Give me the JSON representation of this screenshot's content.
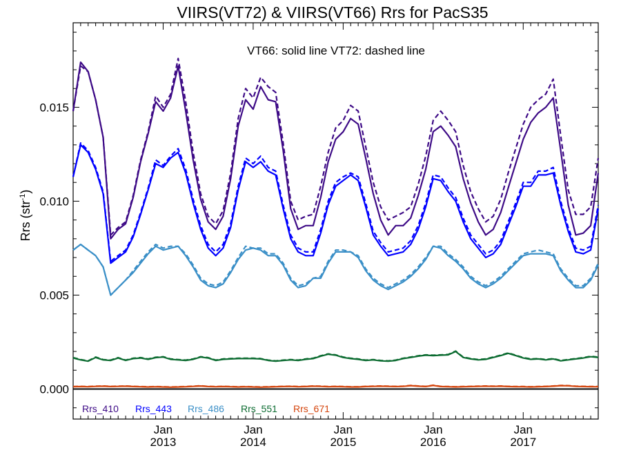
{
  "chart_data": {
    "type": "line",
    "title": "VIIRS(VT72) & VIIRS(VT66)  Rrs for PacS35",
    "annotation": "VT66: solid line   VT72: dashed line",
    "ylabel": "Rrs (str",
    "ylabel_sup": "-1",
    "ylabel_close": ")",
    "ylim": [
      -0.0016,
      0.0195
    ],
    "xlim": [
      "2012-01",
      "2017-11"
    ],
    "y_ticks": [
      "0.000",
      "0.005",
      "0.010",
      "0.015"
    ],
    "x_ticks": [
      {
        "month": "Jan",
        "year": "2013",
        "date": "2013-01"
      },
      {
        "month": "Jan",
        "year": "2014",
        "date": "2014-01"
      },
      {
        "month": "Jan",
        "year": "2015",
        "date": "2015-01"
      },
      {
        "month": "Jan",
        "year": "2016",
        "date": "2016-01"
      },
      {
        "month": "Jan",
        "year": "2017",
        "date": "2017-01"
      }
    ],
    "zero_line": 0.0,
    "grid": false,
    "legend_position": "bottom-left",
    "x": [
      "2012-01",
      "2012-02",
      "2012-03",
      "2012-04",
      "2012-05",
      "2012-06",
      "2012-07",
      "2012-08",
      "2012-09",
      "2012-10",
      "2012-11",
      "2012-12",
      "2013-01",
      "2013-02",
      "2013-03",
      "2013-04",
      "2013-05",
      "2013-06",
      "2013-07",
      "2013-08",
      "2013-09",
      "2013-10",
      "2013-11",
      "2013-12",
      "2014-01",
      "2014-02",
      "2014-03",
      "2014-04",
      "2014-05",
      "2014-06",
      "2014-07",
      "2014-08",
      "2014-09",
      "2014-10",
      "2014-11",
      "2014-12",
      "2015-01",
      "2015-02",
      "2015-03",
      "2015-04",
      "2015-05",
      "2015-06",
      "2015-07",
      "2015-08",
      "2015-09",
      "2015-10",
      "2015-11",
      "2015-12",
      "2016-01",
      "2016-02",
      "2016-03",
      "2016-04",
      "2016-05",
      "2016-06",
      "2016-07",
      "2016-08",
      "2016-09",
      "2016-10",
      "2016-11",
      "2016-12",
      "2017-01",
      "2017-02",
      "2017-03",
      "2017-04",
      "2017-05",
      "2017-06",
      "2017-07",
      "2017-08",
      "2017-09",
      "2017-10",
      "2017-11"
    ],
    "series": [
      {
        "name": "Rrs_410",
        "color": "#3d0a86",
        "vt66": [
          0.0148,
          0.0174,
          0.0169,
          0.0154,
          0.0134,
          0.008,
          0.0085,
          0.0088,
          0.0102,
          0.0121,
          0.0136,
          0.0153,
          0.0148,
          0.0155,
          0.0172,
          0.0148,
          0.0122,
          0.0101,
          0.0089,
          0.0085,
          0.0092,
          0.0112,
          0.014,
          0.0154,
          0.0149,
          0.0161,
          0.0154,
          0.0153,
          0.0127,
          0.0096,
          0.0085,
          0.0087,
          0.0087,
          0.0102,
          0.0121,
          0.0133,
          0.0137,
          0.0144,
          0.0141,
          0.0123,
          0.0104,
          0.009,
          0.0082,
          0.0087,
          0.0087,
          0.0091,
          0.0103,
          0.0117,
          0.0137,
          0.014,
          0.0135,
          0.0129,
          0.0112,
          0.0099,
          0.0089,
          0.0082,
          0.0085,
          0.0094,
          0.0107,
          0.012,
          0.0133,
          0.0142,
          0.0147,
          0.015,
          0.0155,
          0.0127,
          0.0098,
          0.0082,
          0.0083,
          0.0087,
          0.0115
        ],
        "vt72": [
          0.0148,
          0.0172,
          0.0169,
          0.0154,
          0.0134,
          0.0082,
          0.0086,
          0.0089,
          0.0103,
          0.0122,
          0.0137,
          0.0156,
          0.015,
          0.0157,
          0.0176,
          0.0153,
          0.0126,
          0.0104,
          0.0092,
          0.0088,
          0.0095,
          0.0115,
          0.0144,
          0.016,
          0.0155,
          0.0166,
          0.0161,
          0.0158,
          0.0131,
          0.01,
          0.009,
          0.0092,
          0.0093,
          0.0108,
          0.0126,
          0.0139,
          0.0143,
          0.0151,
          0.0148,
          0.0129,
          0.011,
          0.0097,
          0.009,
          0.0092,
          0.0094,
          0.0097,
          0.0109,
          0.0124,
          0.0143,
          0.0148,
          0.0143,
          0.0137,
          0.0119,
          0.0105,
          0.0096,
          0.0089,
          0.0092,
          0.0101,
          0.0115,
          0.0128,
          0.0141,
          0.015,
          0.0154,
          0.0157,
          0.0165,
          0.0135,
          0.0106,
          0.0093,
          0.0093,
          0.0097,
          0.0123
        ]
      },
      {
        "name": "Rrs_443",
        "color": "#0000ff",
        "vt66": [
          0.0113,
          0.013,
          0.0126,
          0.0117,
          0.0104,
          0.0067,
          0.007,
          0.0073,
          0.0081,
          0.0093,
          0.0106,
          0.012,
          0.0118,
          0.0123,
          0.0126,
          0.0115,
          0.0099,
          0.0085,
          0.0075,
          0.0071,
          0.0075,
          0.0086,
          0.0106,
          0.0121,
          0.0118,
          0.0121,
          0.0116,
          0.0114,
          0.0096,
          0.008,
          0.0073,
          0.0071,
          0.0071,
          0.0083,
          0.0098,
          0.0108,
          0.0111,
          0.0114,
          0.0111,
          0.0097,
          0.0082,
          0.0076,
          0.0071,
          0.0072,
          0.0073,
          0.0077,
          0.0085,
          0.0097,
          0.0112,
          0.0111,
          0.0105,
          0.01,
          0.0089,
          0.008,
          0.0075,
          0.007,
          0.0072,
          0.0077,
          0.0087,
          0.0097,
          0.0108,
          0.0108,
          0.0114,
          0.0114,
          0.0115,
          0.0098,
          0.0084,
          0.0073,
          0.0072,
          0.0074,
          0.0096
        ],
        "vt72": [
          0.0113,
          0.0131,
          0.0127,
          0.0118,
          0.0105,
          0.0068,
          0.0071,
          0.0074,
          0.0082,
          0.0094,
          0.0107,
          0.0122,
          0.0119,
          0.0124,
          0.0128,
          0.0117,
          0.0101,
          0.0087,
          0.0077,
          0.0073,
          0.0077,
          0.0088,
          0.0108,
          0.0123,
          0.012,
          0.0124,
          0.0118,
          0.0116,
          0.0098,
          0.0082,
          0.0075,
          0.0073,
          0.0073,
          0.0085,
          0.01,
          0.011,
          0.0113,
          0.0115,
          0.0113,
          0.0099,
          0.0084,
          0.0078,
          0.0073,
          0.0074,
          0.0075,
          0.0079,
          0.0087,
          0.0099,
          0.0114,
          0.0113,
          0.0107,
          0.0102,
          0.0091,
          0.0082,
          0.0077,
          0.0072,
          0.0074,
          0.0079,
          0.0089,
          0.0099,
          0.011,
          0.011,
          0.0116,
          0.0116,
          0.0118,
          0.01,
          0.0086,
          0.0075,
          0.0074,
          0.0076,
          0.0098
        ]
      },
      {
        "name": "Rrs_486",
        "color": "#3a8fc7",
        "vt66": [
          0.0074,
          0.0077,
          0.0074,
          0.0071,
          0.0065,
          0.005,
          0.0054,
          0.0058,
          0.0062,
          0.0067,
          0.0072,
          0.0076,
          0.0074,
          0.0075,
          0.0076,
          0.0071,
          0.0065,
          0.0058,
          0.0055,
          0.0054,
          0.0056,
          0.0062,
          0.0069,
          0.0074,
          0.0075,
          0.0074,
          0.0071,
          0.0071,
          0.0066,
          0.0058,
          0.0054,
          0.0055,
          0.0059,
          0.0059,
          0.0067,
          0.0073,
          0.0073,
          0.0073,
          0.007,
          0.0063,
          0.0058,
          0.0055,
          0.0053,
          0.0055,
          0.0057,
          0.006,
          0.0064,
          0.0069,
          0.0076,
          0.0075,
          0.0071,
          0.0068,
          0.0064,
          0.0059,
          0.0056,
          0.0054,
          0.0056,
          0.0059,
          0.0063,
          0.0067,
          0.0071,
          0.0072,
          0.0072,
          0.0072,
          0.0071,
          0.0063,
          0.0058,
          0.0054,
          0.0054,
          0.0058,
          0.0066
        ],
        "vt72": [
          0.0074,
          0.0077,
          0.0074,
          0.0071,
          0.0065,
          0.005,
          0.0054,
          0.0058,
          0.0063,
          0.0068,
          0.0073,
          0.0077,
          0.0075,
          0.0076,
          0.0076,
          0.0072,
          0.0066,
          0.0059,
          0.0056,
          0.0055,
          0.0057,
          0.0063,
          0.007,
          0.0076,
          0.0075,
          0.0075,
          0.0072,
          0.0072,
          0.0067,
          0.0059,
          0.0055,
          0.0056,
          0.0059,
          0.006,
          0.0068,
          0.0074,
          0.0074,
          0.0073,
          0.0071,
          0.0064,
          0.0059,
          0.0056,
          0.0054,
          0.0056,
          0.0058,
          0.0061,
          0.0065,
          0.007,
          0.0076,
          0.0076,
          0.0072,
          0.0069,
          0.0065,
          0.006,
          0.0057,
          0.0055,
          0.0057,
          0.006,
          0.0064,
          0.0068,
          0.0072,
          0.0073,
          0.0074,
          0.0073,
          0.0072,
          0.0064,
          0.0059,
          0.0055,
          0.0055,
          0.0059,
          0.0067
        ]
      },
      {
        "name": "Rrs_551",
        "color": "#0b6b30",
        "vt66": [
          0.00165,
          0.00155,
          0.00148,
          0.00168,
          0.00155,
          0.00152,
          0.00165,
          0.00152,
          0.00162,
          0.00165,
          0.00158,
          0.00167,
          0.0017,
          0.00158,
          0.00155,
          0.00152,
          0.00158,
          0.0017,
          0.00165,
          0.00152,
          0.00158,
          0.0016,
          0.00162,
          0.00162,
          0.00162,
          0.0016,
          0.00152,
          0.00148,
          0.00152,
          0.00155,
          0.00152,
          0.00158,
          0.00162,
          0.00175,
          0.00185,
          0.0018,
          0.00168,
          0.00162,
          0.00158,
          0.00152,
          0.00155,
          0.0015,
          0.00148,
          0.00152,
          0.00162,
          0.00168,
          0.00175,
          0.0018,
          0.00178,
          0.0018,
          0.00182,
          0.002,
          0.00168,
          0.0016,
          0.00155,
          0.00158,
          0.00168,
          0.00178,
          0.0019,
          0.00178,
          0.00165,
          0.00158,
          0.0016,
          0.00155,
          0.0016,
          0.0015,
          0.00155,
          0.0016,
          0.00165,
          0.00172,
          0.00168
        ],
        "vt72": [
          0.00167,
          0.00157,
          0.0015,
          0.0017,
          0.00157,
          0.00154,
          0.00167,
          0.00154,
          0.00164,
          0.00167,
          0.0016,
          0.00169,
          0.00172,
          0.0016,
          0.00157,
          0.00154,
          0.0016,
          0.00172,
          0.00167,
          0.00154,
          0.0016,
          0.00162,
          0.00164,
          0.00164,
          0.00164,
          0.00162,
          0.00154,
          0.0015,
          0.00154,
          0.00157,
          0.00154,
          0.0016,
          0.00164,
          0.00177,
          0.00187,
          0.00182,
          0.0017,
          0.00164,
          0.0016,
          0.00154,
          0.00157,
          0.00152,
          0.0015,
          0.00154,
          0.00164,
          0.0017,
          0.00177,
          0.00182,
          0.0018,
          0.00182,
          0.00184,
          0.00202,
          0.0017,
          0.00162,
          0.00157,
          0.0016,
          0.0017,
          0.0018,
          0.00192,
          0.0018,
          0.00167,
          0.0016,
          0.00162,
          0.00157,
          0.00162,
          0.00152,
          0.00157,
          0.00162,
          0.00167,
          0.00174,
          0.0017
        ]
      },
      {
        "name": "Rrs_671",
        "color": "#d4440c",
        "vt66": [
          0.00012,
          0.00013,
          0.00012,
          0.00014,
          0.00015,
          0.00013,
          0.00014,
          0.00015,
          0.00013,
          0.00012,
          0.00011,
          0.00012,
          0.00011,
          0.0001,
          0.00011,
          0.00012,
          0.00014,
          0.00016,
          0.00013,
          0.00012,
          0.00013,
          0.00012,
          0.00011,
          0.00012,
          0.00011,
          0.0001,
          0.00011,
          0.00012,
          0.00013,
          0.00014,
          0.00012,
          0.00013,
          0.00015,
          0.00014,
          0.00012,
          0.00013,
          0.00012,
          0.00011,
          0.00011,
          0.00013,
          0.00014,
          0.00015,
          0.00014,
          0.00013,
          0.00014,
          0.00018,
          0.00015,
          0.00013,
          0.00019,
          0.00013,
          0.00012,
          0.00011,
          0.00012,
          0.00013,
          0.00014,
          0.00015,
          0.00014,
          0.00015,
          0.00013,
          0.00012,
          0.00012,
          0.00011,
          0.00012,
          0.00013,
          0.00015,
          0.00018,
          0.00017,
          0.00014,
          0.00013,
          0.00012,
          0.00012
        ],
        "vt72": [
          0.00013,
          0.00014,
          0.00013,
          0.00015,
          0.00016,
          0.00014,
          0.00015,
          0.00016,
          0.00014,
          0.00013,
          0.00012,
          0.00013,
          0.00012,
          0.00011,
          0.00012,
          0.00013,
          0.00015,
          0.00017,
          0.00014,
          0.00013,
          0.00014,
          0.00013,
          0.00012,
          0.00013,
          0.00012,
          0.00011,
          0.00012,
          0.00013,
          0.00014,
          0.00015,
          0.00013,
          0.00014,
          0.00016,
          0.00015,
          0.00013,
          0.00014,
          0.00013,
          0.00012,
          0.00012,
          0.00014,
          0.00015,
          0.00016,
          0.00015,
          0.00014,
          0.00015,
          0.00019,
          0.00016,
          0.00014,
          0.0002,
          0.00014,
          0.00013,
          0.00012,
          0.00013,
          0.00014,
          0.00015,
          0.00016,
          0.00015,
          0.00016,
          0.00014,
          0.00013,
          0.00013,
          0.00012,
          0.00013,
          0.00014,
          0.00016,
          0.00019,
          0.00018,
          0.00015,
          0.00014,
          0.00013,
          0.00013
        ]
      }
    ]
  }
}
